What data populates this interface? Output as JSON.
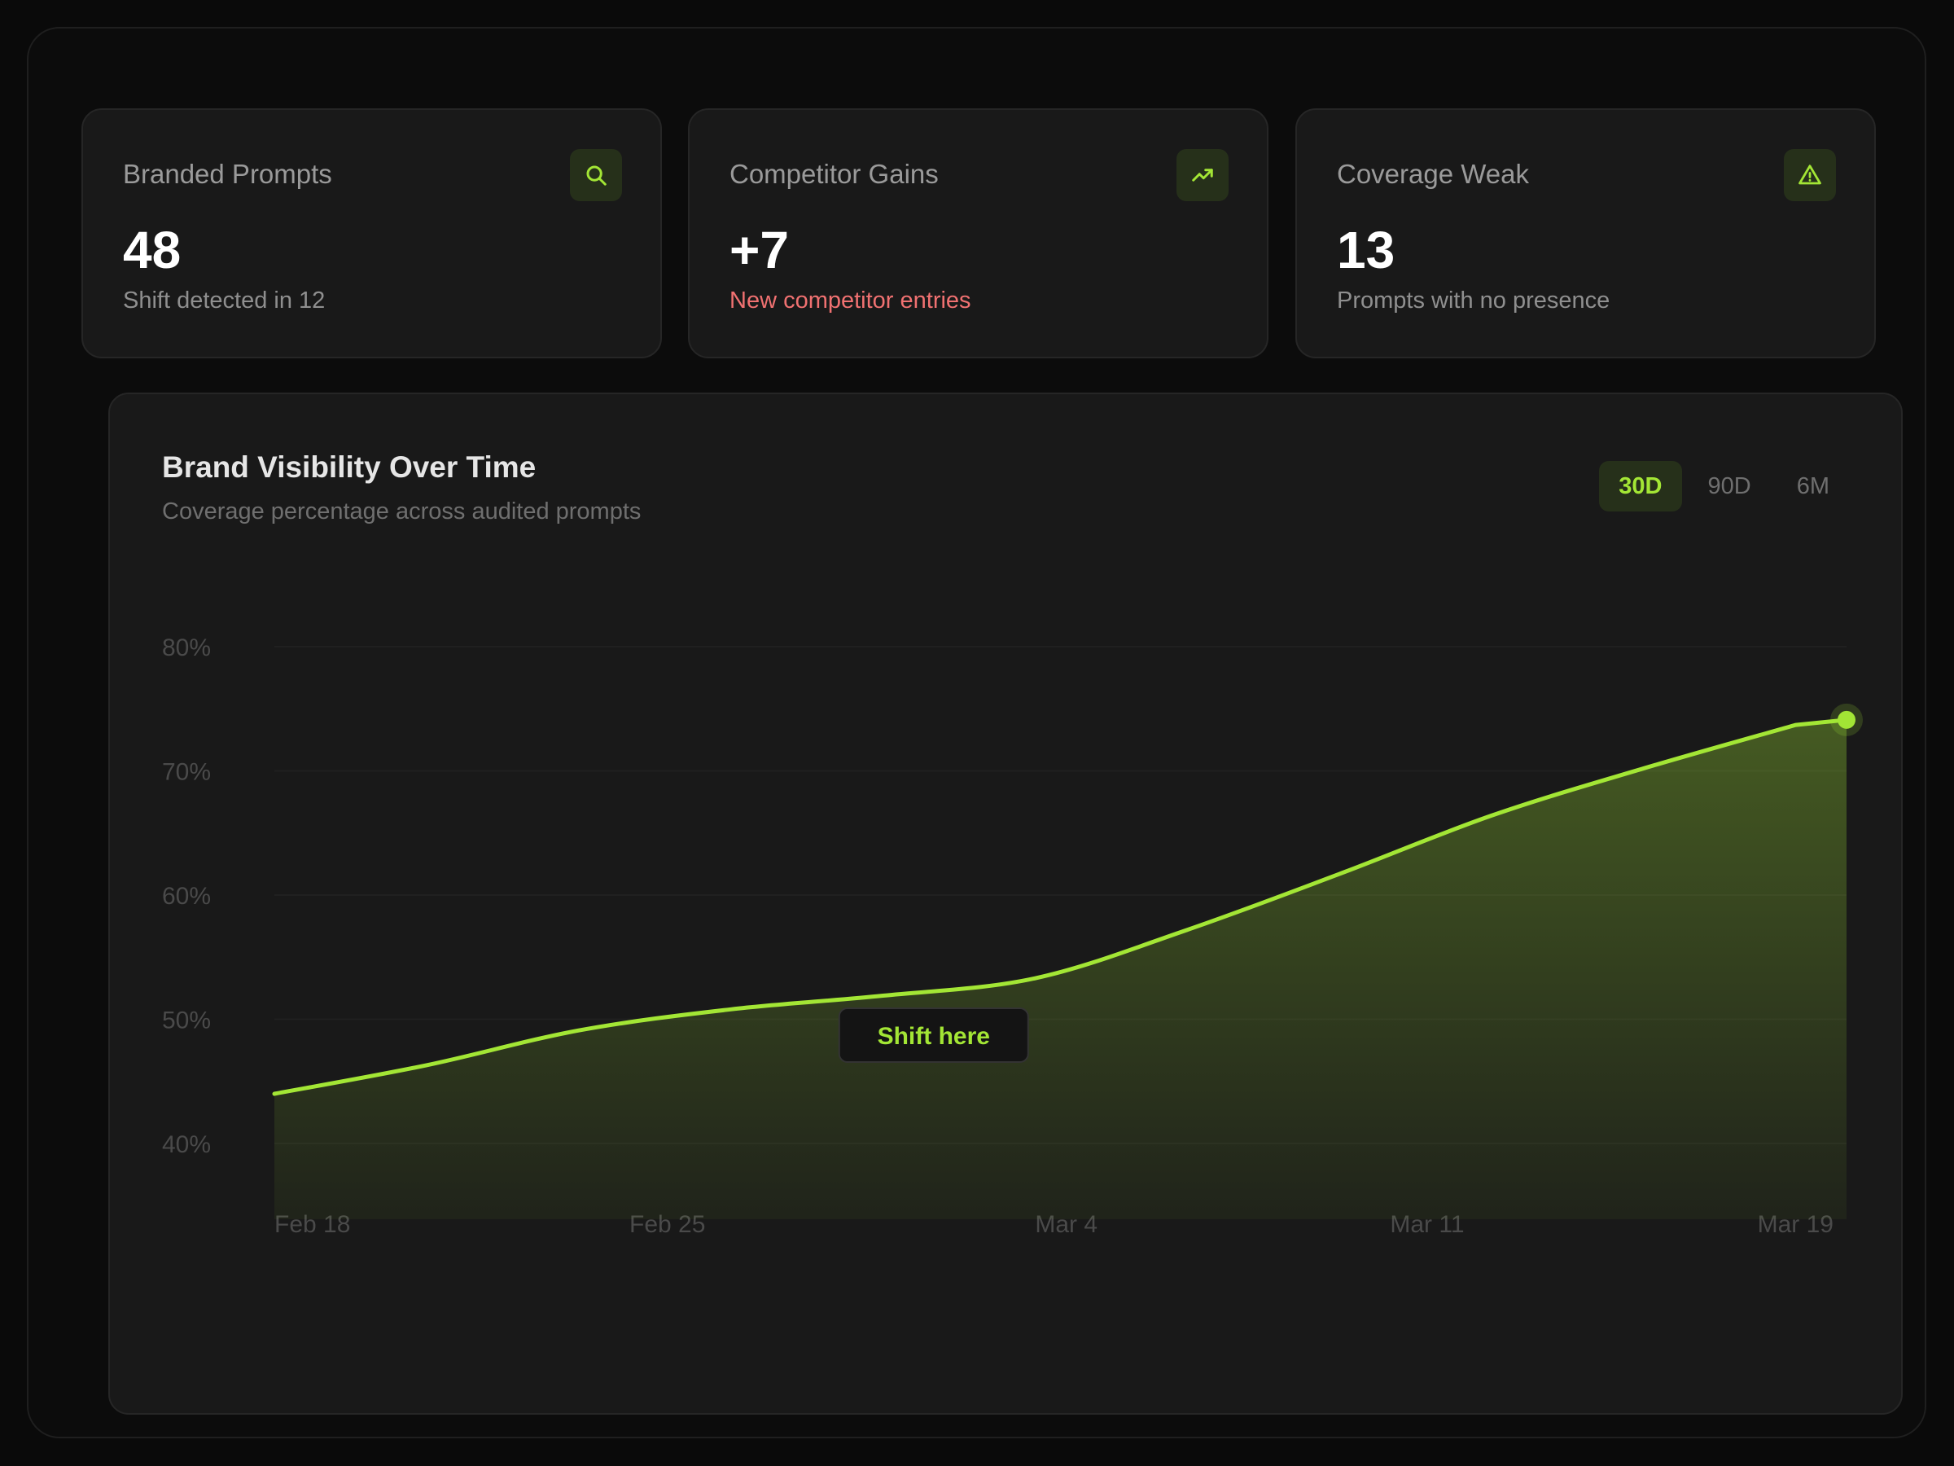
{
  "stats": [
    {
      "title": "Branded Prompts",
      "value": "48",
      "subtitle": "Shift detected in 12",
      "icon": "search-icon",
      "subtitle_tone": "muted"
    },
    {
      "title": "Competitor Gains",
      "value": "+7",
      "subtitle": "New competitor entries",
      "icon": "trending-up-icon",
      "subtitle_tone": "warning"
    },
    {
      "title": "Coverage Weak",
      "value": "13",
      "subtitle": "Prompts with no presence",
      "icon": "alert-triangle-icon",
      "subtitle_tone": "muted"
    }
  ],
  "panel": {
    "title": "Brand Visibility Over Time",
    "subtitle": "Coverage percentage across audited prompts",
    "ranges": [
      "30D",
      "90D",
      "6M"
    ],
    "active_range": "30D"
  },
  "chart_data": {
    "type": "area",
    "title": "Brand Visibility Over Time",
    "subtitle": "Coverage percentage across audited prompts",
    "xlabel": "",
    "ylabel": "",
    "x_ticks": [
      "Feb 18",
      "Feb 25",
      "Mar 4",
      "Mar 11",
      "Mar 19"
    ],
    "y_ticks": [
      "40%",
      "50%",
      "60%",
      "70%",
      "80%"
    ],
    "y_tick_values": [
      40,
      50,
      60,
      70,
      80
    ],
    "ylim": [
      36,
      80
    ],
    "x_range": [
      "Feb 18",
      "Mar 20"
    ],
    "grid": true,
    "series": [
      {
        "points": [
          [
            "Feb 18",
            44
          ],
          [
            "Feb 21",
            46.3
          ],
          [
            "Feb 24",
            49.1
          ],
          [
            "Feb 27",
            50.8
          ],
          [
            "Mar 1",
            51.9
          ],
          [
            "Mar 4",
            53.3
          ],
          [
            "Mar 7",
            57.2
          ],
          [
            "Mar 10",
            61.7
          ],
          [
            "Mar 13",
            66.4
          ],
          [
            "Mar 16",
            70.2
          ],
          [
            "Mar 19",
            73.7
          ]
        ]
      }
    ],
    "annotation": {
      "label": "Shift here",
      "x": "Mar 2"
    },
    "colors": {
      "line": "#a3e635",
      "fill": "#a3e635",
      "grid": "#202020",
      "axis_text": "#4a4a4a"
    }
  },
  "colors": {
    "accent": "#a3e635",
    "warning": "#f07171",
    "background": "#0a0a0a",
    "card": "#191919"
  }
}
